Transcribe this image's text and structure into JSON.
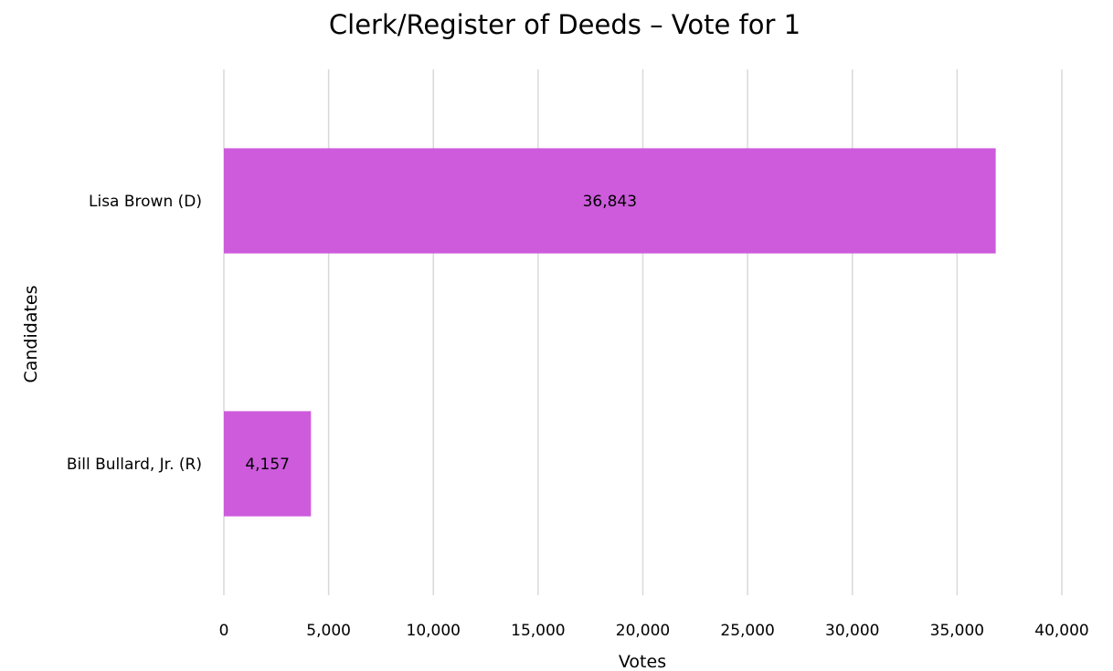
{
  "chart_data": {
    "type": "bar",
    "orientation": "horizontal",
    "title": "Clerk/Register of Deeds – Vote for 1",
    "xlabel": "Votes",
    "ylabel": "Candidates",
    "categories": [
      "Lisa Brown (D)",
      "Bill Bullard, Jr. (R)"
    ],
    "values": [
      36843,
      4157
    ],
    "data_labels": [
      "36,843",
      "4,157"
    ],
    "xlim": [
      0,
      40000
    ],
    "xticks": [
      0,
      5000,
      10000,
      15000,
      20000,
      25000,
      30000,
      35000,
      40000
    ],
    "xtick_labels": [
      "0",
      "5,000",
      "10,000",
      "15,000",
      "20,000",
      "25,000",
      "30,000",
      "35,000",
      "40,000"
    ],
    "grid": "vertical",
    "legend": "none",
    "bar_color": "#cd5bdc",
    "grid_color": "#d9d9d9"
  }
}
